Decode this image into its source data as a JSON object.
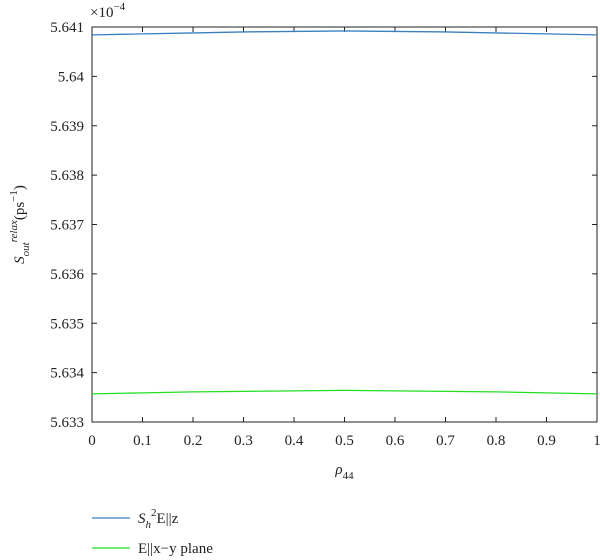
{
  "chart_data": {
    "type": "line",
    "xlabel": [
      {
        "text": "ρ",
        "script": "base"
      },
      {
        "text": "44",
        "script": "sub"
      }
    ],
    "ylabel": [
      {
        "text": "S",
        "script": "base"
      },
      {
        "text": "out",
        "script": "sub"
      },
      {
        "text": "relax",
        "script": "sup"
      },
      {
        "text": "(ps",
        "script": "base"
      },
      {
        "text": "−1",
        "script": "sup"
      },
      {
        "text": ")",
        "script": "base"
      }
    ],
    "y_offset": [
      {
        "text": "×10",
        "script": "base"
      },
      {
        "text": "−4",
        "script": "sup"
      }
    ],
    "x": [
      0,
      0.1,
      0.2,
      0.3,
      0.4,
      0.5,
      0.6,
      0.7,
      0.8,
      0.9,
      1
    ],
    "series": [
      {
        "name": [
          {
            "text": "S",
            "script": "base"
          },
          {
            "text": "h",
            "script": "sub"
          },
          {
            "text": "2",
            "script": "sup"
          },
          {
            "text": "E||z",
            "script": "base"
          }
        ],
        "color": "#3a7fc1",
        "values": [
          5.64084,
          5.64086,
          5.64088,
          5.6409,
          5.64091,
          5.64092,
          5.64091,
          5.6409,
          5.64088,
          5.64086,
          5.64084
        ]
      },
      {
        "name": [
          {
            "text": "E||x−y plane",
            "script": "base"
          }
        ],
        "color": "#22dd22",
        "values": [
          5.63357,
          5.63359,
          5.63361,
          5.63362,
          5.63363,
          5.63364,
          5.63363,
          5.63362,
          5.63361,
          5.63359,
          5.63357
        ]
      }
    ],
    "xlim": [
      0,
      1
    ],
    "xticks": [
      0,
      0.1,
      0.2,
      0.3,
      0.4,
      0.5,
      0.6,
      0.7,
      0.8,
      0.9,
      1
    ],
    "ylim": [
      5.633,
      5.641
    ],
    "yticks": [
      5.633,
      5.634,
      5.635,
      5.636,
      5.637,
      5.638,
      5.639,
      5.64,
      5.641
    ],
    "grid": false,
    "legend": "below"
  }
}
